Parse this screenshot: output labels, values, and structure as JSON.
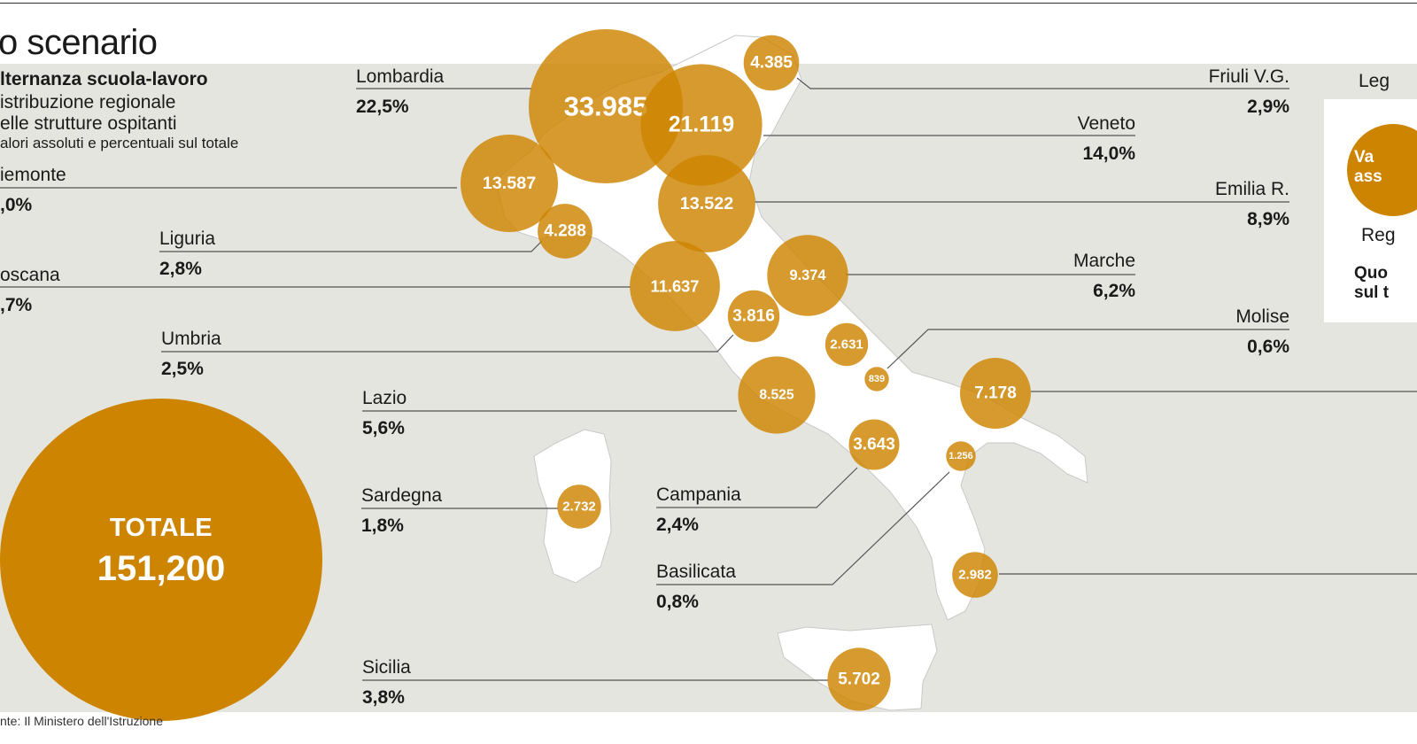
{
  "header": {
    "title": "o scenario",
    "subtitle_bold": "lternanza scuola-lavoro",
    "subtitle_line2": "istribuzione regionale",
    "subtitle_line3": "elle strutture ospitanti",
    "subtitle_line4": "alori assoluti e percentuali sul totale"
  },
  "source": "nte: Il Ministero dell'Istruzione",
  "total": {
    "label": "TOTALE",
    "value": "151,200"
  },
  "legend": {
    "title": "Leg",
    "bubble_line1": "Va",
    "bubble_line2": "ass",
    "region_label": "Reg",
    "quota_line1": "Quo",
    "quota_line2": "sul t"
  },
  "colors": {
    "bubble": "#cd8400",
    "panel": "#e5e5e0",
    "land": "#ffffff",
    "line": "#555555"
  },
  "regions": [
    {
      "id": "lombardia",
      "name": "Lombardia",
      "pct": "22,5%",
      "value": "33.985",
      "amount": 33985
    },
    {
      "id": "veneto",
      "name": "Veneto",
      "pct": "14,0%",
      "value": "21.119",
      "amount": 21119
    },
    {
      "id": "friuli",
      "name": "Friuli V.G.",
      "pct": "2,9%",
      "value": "4.385",
      "amount": 4385
    },
    {
      "id": "piemonte",
      "name": "iemonte",
      "pct": ",0%",
      "value": "13.587",
      "amount": 13587
    },
    {
      "id": "emilia",
      "name": "Emilia R.",
      "pct": "8,9%",
      "value": "13.522",
      "amount": 13522
    },
    {
      "id": "liguria",
      "name": "Liguria",
      "pct": "2,8%",
      "value": "4.288",
      "amount": 4288
    },
    {
      "id": "toscana",
      "name": "oscana",
      "pct": ",7%",
      "value": "11.637",
      "amount": 11637
    },
    {
      "id": "marche",
      "name": "Marche",
      "pct": "6,2%",
      "value": "9.374",
      "amount": 9374
    },
    {
      "id": "umbria",
      "name": "Umbria",
      "pct": "2,5%",
      "value": "3.816",
      "amount": 3816
    },
    {
      "id": "abruzzo",
      "name": "",
      "pct": "",
      "value": "2.631",
      "amount": 2631
    },
    {
      "id": "molise",
      "name": "Molise",
      "pct": "0,6%",
      "value": "839",
      "amount": 839
    },
    {
      "id": "lazio",
      "name": "Lazio",
      "pct": "5,6%",
      "value": "8.525",
      "amount": 8525
    },
    {
      "id": "puglia",
      "name": "",
      "pct": "",
      "value": "7.178",
      "amount": 7178
    },
    {
      "id": "sardegna",
      "name": "Sardegna",
      "pct": "1,8%",
      "value": "2.732",
      "amount": 2732
    },
    {
      "id": "campania",
      "name": "Campania",
      "pct": "2,4%",
      "value": "3.643",
      "amount": 3643
    },
    {
      "id": "basilicata",
      "name": "Basilicata",
      "pct": "0,8%",
      "value": "1.256",
      "amount": 1256
    },
    {
      "id": "calabria",
      "name": "",
      "pct": "",
      "value": "2.982",
      "amount": 2982
    },
    {
      "id": "sicilia",
      "name": "Sicilia",
      "pct": "3,8%",
      "value": "5.702",
      "amount": 5702
    }
  ]
}
